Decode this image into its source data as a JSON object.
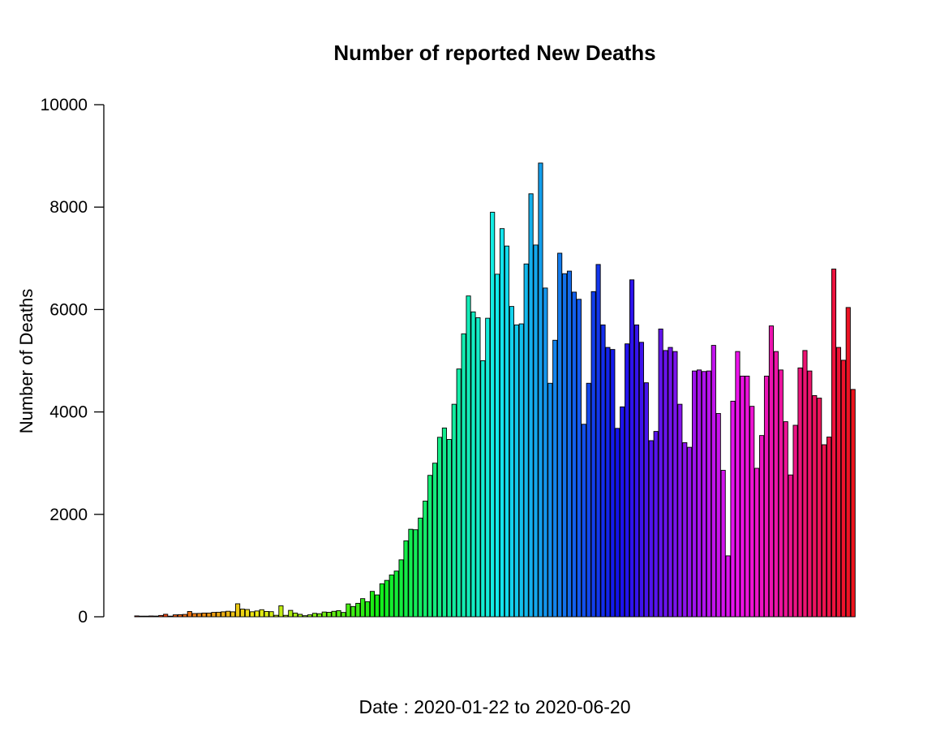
{
  "chart_data": {
    "type": "bar",
    "title": "Number of reported New Deaths",
    "xlabel": "Date : 2020-01-22 to 2020-06-20",
    "ylabel": "Number of Deaths",
    "ylim": [
      0,
      10000
    ],
    "yticks": [
      0,
      2000,
      4000,
      6000,
      8000,
      10000
    ],
    "grid": false,
    "values": [
      17,
      0,
      8,
      16,
      14,
      26,
      49,
      2,
      38,
      42,
      46,
      103,
      64,
      66,
      73,
      73,
      86,
      89,
      97,
      108,
      97,
      254,
      150,
      142,
      98,
      113,
      138,
      104,
      100,
      29,
      214,
      28,
      125,
      73,
      48,
      21,
      38,
      68,
      60,
      93,
      88,
      107,
      120,
      85,
      251,
      201,
      263,
      354,
      296,
      496,
      427,
      645,
      711,
      817,
      893,
      1112,
      1484,
      1709,
      1700,
      1928,
      2260,
      2762,
      3000,
      3505,
      3687,
      3463,
      4150,
      4839,
      5526,
      6265,
      5954,
      5840,
      5000,
      5830,
      7900,
      6690,
      7580,
      7240,
      6060,
      5700,
      5720,
      6890,
      8260,
      7260,
      8860,
      6420,
      4560,
      5400,
      7100,
      6700,
      6750,
      6340,
      6200,
      3760,
      4560,
      6350,
      6880,
      5700,
      5260,
      5220,
      3680,
      4100,
      5330,
      6580,
      5700,
      5360,
      4570,
      3440,
      3620,
      5620,
      5200,
      5260,
      5180,
      4150,
      3400,
      3310,
      4800,
      4820,
      4790,
      4800,
      5300,
      3970,
      2860,
      1190,
      4210,
      5180,
      4700,
      4700,
      4110,
      2900,
      3540,
      4700,
      5680,
      5180,
      4820,
      3810,
      2770,
      3740,
      4860,
      5200,
      4800,
      4320,
      4270,
      3360,
      3510,
      6790,
      5260,
      5010,
      6040,
      4440
    ]
  }
}
